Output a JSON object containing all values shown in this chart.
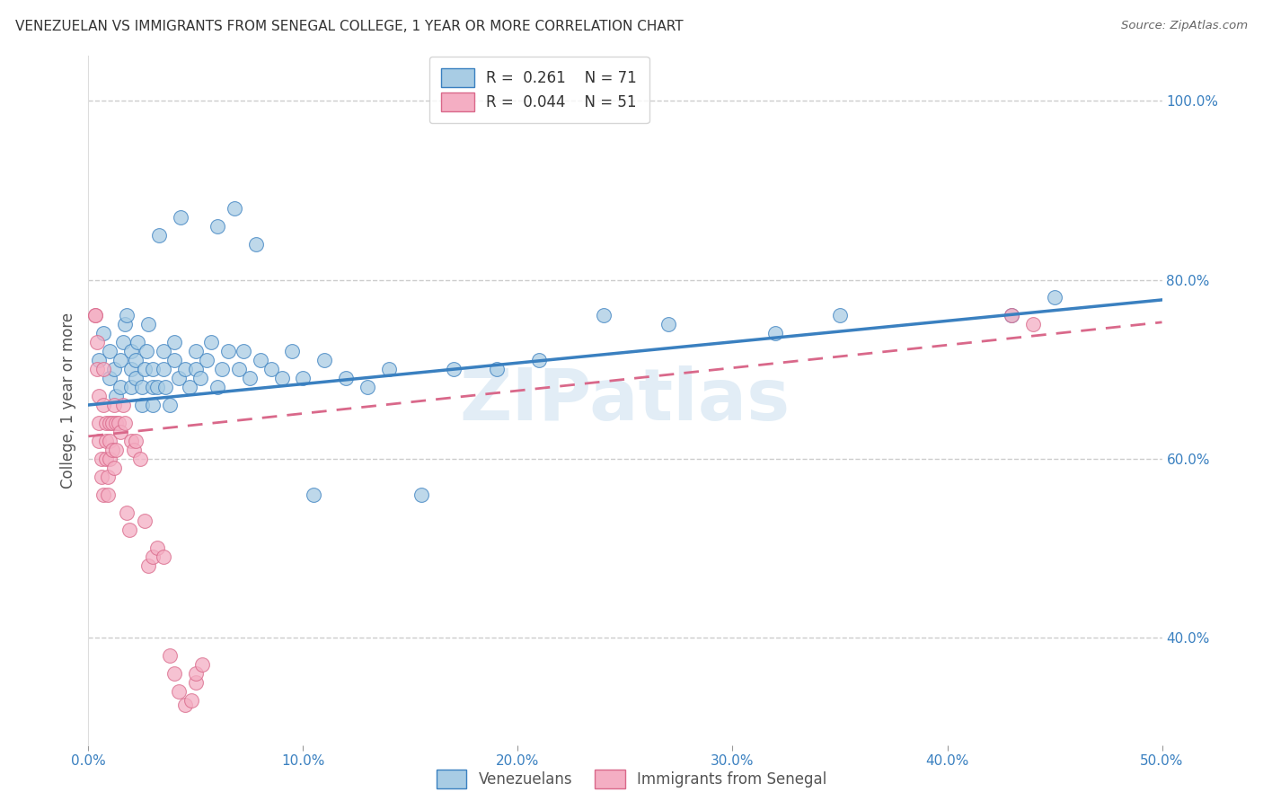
{
  "title": "VENEZUELAN VS IMMIGRANTS FROM SENEGAL COLLEGE, 1 YEAR OR MORE CORRELATION CHART",
  "source": "Source: ZipAtlas.com",
  "ylabel": "College, 1 year or more",
  "xlim": [
    0.0,
    0.5
  ],
  "ylim": [
    0.28,
    1.05
  ],
  "ytick_labels_right": [
    "100.0%",
    "80.0%",
    "60.0%",
    "40.0%"
  ],
  "ytick_positions_right": [
    1.0,
    0.8,
    0.6,
    0.4
  ],
  "legend_r1": "R =  0.261",
  "legend_n1": "N = 71",
  "legend_r2": "R =  0.044",
  "legend_n2": "N = 51",
  "blue_color": "#a8cce4",
  "pink_color": "#f4aec3",
  "line_blue": "#3a80c0",
  "line_pink": "#d9688a",
  "watermark": "ZIPatlas",
  "venezuelan_x": [
    0.005,
    0.007,
    0.01,
    0.01,
    0.012,
    0.013,
    0.015,
    0.015,
    0.016,
    0.017,
    0.018,
    0.02,
    0.02,
    0.02,
    0.022,
    0.022,
    0.023,
    0.025,
    0.025,
    0.026,
    0.027,
    0.028,
    0.03,
    0.03,
    0.03,
    0.032,
    0.033,
    0.035,
    0.035,
    0.036,
    0.038,
    0.04,
    0.04,
    0.042,
    0.043,
    0.045,
    0.047,
    0.05,
    0.05,
    0.052,
    0.055,
    0.057,
    0.06,
    0.06,
    0.062,
    0.065,
    0.068,
    0.07,
    0.072,
    0.075,
    0.078,
    0.08,
    0.085,
    0.09,
    0.095,
    0.1,
    0.105,
    0.11,
    0.12,
    0.13,
    0.14,
    0.155,
    0.17,
    0.19,
    0.21,
    0.24,
    0.27,
    0.32,
    0.35,
    0.43,
    0.45
  ],
  "venezuelan_y": [
    0.71,
    0.74,
    0.69,
    0.72,
    0.7,
    0.67,
    0.68,
    0.71,
    0.73,
    0.75,
    0.76,
    0.68,
    0.7,
    0.72,
    0.69,
    0.71,
    0.73,
    0.66,
    0.68,
    0.7,
    0.72,
    0.75,
    0.66,
    0.68,
    0.7,
    0.68,
    0.85,
    0.7,
    0.72,
    0.68,
    0.66,
    0.71,
    0.73,
    0.69,
    0.87,
    0.7,
    0.68,
    0.7,
    0.72,
    0.69,
    0.71,
    0.73,
    0.68,
    0.86,
    0.7,
    0.72,
    0.88,
    0.7,
    0.72,
    0.69,
    0.84,
    0.71,
    0.7,
    0.69,
    0.72,
    0.69,
    0.56,
    0.71,
    0.69,
    0.68,
    0.7,
    0.56,
    0.7,
    0.7,
    0.71,
    0.76,
    0.75,
    0.74,
    0.76,
    0.76,
    0.78
  ],
  "senegal_x": [
    0.003,
    0.003,
    0.004,
    0.004,
    0.005,
    0.005,
    0.005,
    0.006,
    0.006,
    0.007,
    0.007,
    0.007,
    0.008,
    0.008,
    0.008,
    0.009,
    0.009,
    0.01,
    0.01,
    0.01,
    0.011,
    0.011,
    0.012,
    0.012,
    0.013,
    0.013,
    0.014,
    0.015,
    0.016,
    0.017,
    0.018,
    0.019,
    0.02,
    0.021,
    0.022,
    0.024,
    0.026,
    0.028,
    0.03,
    0.032,
    0.035,
    0.038,
    0.04,
    0.042,
    0.045,
    0.048,
    0.05,
    0.05,
    0.053,
    0.43,
    0.44
  ],
  "senegal_y": [
    0.76,
    0.76,
    0.73,
    0.7,
    0.67,
    0.64,
    0.62,
    0.6,
    0.58,
    0.56,
    0.7,
    0.66,
    0.64,
    0.62,
    0.6,
    0.58,
    0.56,
    0.64,
    0.62,
    0.6,
    0.64,
    0.61,
    0.59,
    0.66,
    0.64,
    0.61,
    0.64,
    0.63,
    0.66,
    0.64,
    0.54,
    0.52,
    0.62,
    0.61,
    0.62,
    0.6,
    0.53,
    0.48,
    0.49,
    0.5,
    0.49,
    0.38,
    0.36,
    0.34,
    0.325,
    0.33,
    0.35,
    0.36,
    0.37,
    0.76,
    0.75
  ]
}
